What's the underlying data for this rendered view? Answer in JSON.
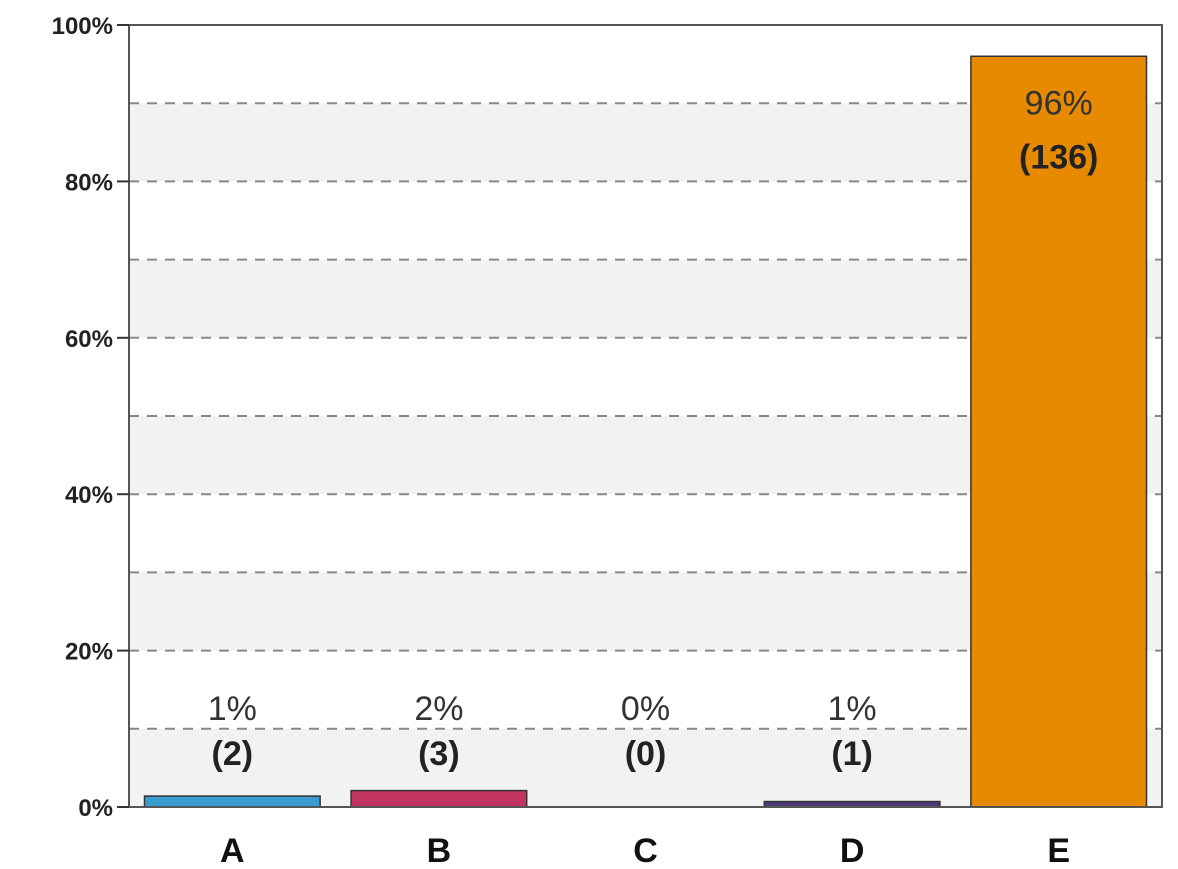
{
  "chart_data": {
    "type": "bar",
    "title": "",
    "xlabel": "",
    "ylabel": "",
    "ylim": [
      0,
      100
    ],
    "y_ticks": [
      "0%",
      "20%",
      "40%",
      "60%",
      "80%",
      "100%"
    ],
    "y_tick_values": [
      0,
      20,
      40,
      60,
      80,
      100
    ],
    "grid_values": [
      10,
      20,
      30,
      40,
      50,
      60,
      70,
      80,
      90
    ],
    "grid": true,
    "legend": "none",
    "categories": [
      "A",
      "B",
      "C",
      "D",
      "E"
    ],
    "values": [
      1.4,
      2.1,
      0,
      0.7,
      96
    ],
    "percent_labels": [
      "1%",
      "2%",
      "0%",
      "1%",
      "96%"
    ],
    "count_labels": [
      "(2)",
      "(3)",
      "(0)",
      "(1)",
      "(136)"
    ],
    "colors": [
      "#3a9bd1",
      "#c0345f",
      "#999999",
      "#4b3a78",
      "#e88a00"
    ]
  }
}
